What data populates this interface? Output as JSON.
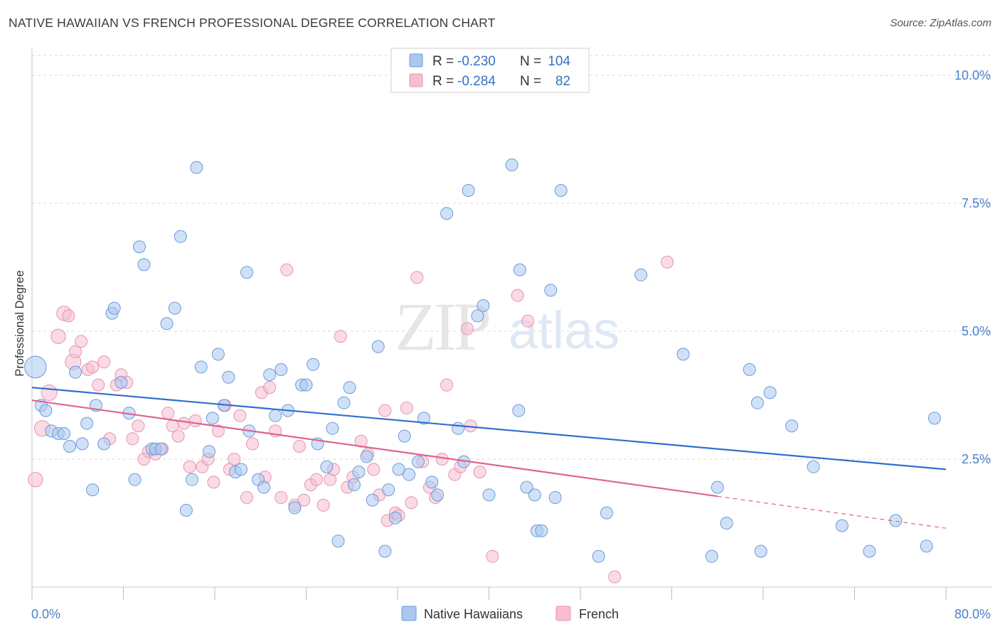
{
  "title": "NATIVE HAWAIIAN VS FRENCH PROFESSIONAL DEGREE CORRELATION CHART",
  "source": "Source: ZipAtlas.com",
  "watermark": {
    "zip": "ZIP",
    "atlas": "atlas"
  },
  "colors": {
    "blue_fill": "#a9c8f0",
    "blue_stroke": "#6c9bd8",
    "blue_line": "#2f6fcf",
    "pink_fill": "#f6bed0",
    "pink_stroke": "#e893b0",
    "pink_line": "#e0628f",
    "grid": "#d9d9d9",
    "tick_text": "#4a7fcb"
  },
  "legend_top": [
    {
      "r_label": "R =",
      "r_value": "-0.230",
      "n_label": "N =",
      "n_value": "104",
      "color": "blue"
    },
    {
      "r_label": "R =",
      "r_value": "-0.284",
      "n_label": "N =",
      "n_value": "82",
      "color": "pink"
    }
  ],
  "legend_bottom": [
    {
      "label": "Native Hawaiians",
      "color": "blue"
    },
    {
      "label": "French",
      "color": "pink"
    }
  ],
  "chart_data": {
    "type": "scatter",
    "title": "NATIVE HAWAIIAN VS FRENCH PROFESSIONAL DEGREE CORRELATION CHART",
    "xlabel": "",
    "ylabel": "Professional Degree",
    "xlim": [
      0,
      80
    ],
    "ylim": [
      0,
      10.5
    ],
    "x_tick_labels": [
      "0.0%",
      "80.0%"
    ],
    "y_ticks": [
      2.5,
      5.0,
      7.5,
      10.0
    ],
    "y_tick_labels": [
      "2.5%",
      "5.0%",
      "7.5%",
      "10.0%"
    ],
    "grid": true,
    "legend_placement": "top-center",
    "series": [
      {
        "name": "Native Hawaiians",
        "color": "blue",
        "trend": {
          "x": [
            0,
            80
          ],
          "y": [
            3.9,
            2.3
          ],
          "dashed_from": null
        },
        "points": [
          [
            0.3,
            4.3,
            1.8
          ],
          [
            0.8,
            3.55,
            1
          ],
          [
            1.2,
            3.45,
            1
          ],
          [
            1.7,
            3.05,
            1
          ],
          [
            2.3,
            3.0,
            1
          ],
          [
            2.8,
            3.0,
            1
          ],
          [
            3.3,
            2.75,
            1
          ],
          [
            3.8,
            4.2,
            1
          ],
          [
            4.4,
            2.8,
            1
          ],
          [
            4.8,
            3.2,
            1
          ],
          [
            5.3,
            1.9,
            1
          ],
          [
            5.6,
            3.55,
            1
          ],
          [
            6.3,
            2.8,
            1
          ],
          [
            7.0,
            5.35,
            1
          ],
          [
            7.2,
            5.45,
            1
          ],
          [
            7.8,
            4.0,
            1
          ],
          [
            8.5,
            3.4,
            1
          ],
          [
            9.0,
            2.1,
            1
          ],
          [
            9.4,
            6.65,
            1
          ],
          [
            9.8,
            6.3,
            1
          ],
          [
            10.5,
            2.7,
            1
          ],
          [
            10.8,
            2.7,
            1
          ],
          [
            11.3,
            2.7,
            1
          ],
          [
            11.8,
            5.15,
            1
          ],
          [
            12.5,
            5.45,
            1
          ],
          [
            13.0,
            6.85,
            1
          ],
          [
            13.5,
            1.5,
            1
          ],
          [
            14.0,
            2.1,
            1
          ],
          [
            14.4,
            8.2,
            1
          ],
          [
            14.8,
            4.3,
            1
          ],
          [
            15.5,
            2.65,
            1
          ],
          [
            15.8,
            3.3,
            1
          ],
          [
            16.3,
            4.55,
            1
          ],
          [
            16.8,
            3.55,
            1
          ],
          [
            17.2,
            4.1,
            1
          ],
          [
            17.8,
            2.25,
            1
          ],
          [
            18.3,
            2.3,
            1
          ],
          [
            18.8,
            6.15,
            1
          ],
          [
            19.0,
            3.05,
            1
          ],
          [
            19.8,
            2.1,
            1
          ],
          [
            20.3,
            1.95,
            1
          ],
          [
            20.8,
            4.15,
            1
          ],
          [
            21.3,
            3.35,
            1
          ],
          [
            21.8,
            4.25,
            1
          ],
          [
            22.4,
            3.45,
            1
          ],
          [
            23.0,
            1.55,
            1
          ],
          [
            23.6,
            3.95,
            1
          ],
          [
            24.0,
            3.95,
            1
          ],
          [
            24.6,
            4.35,
            1
          ],
          [
            25.0,
            2.8,
            1
          ],
          [
            25.8,
            2.35,
            1
          ],
          [
            26.3,
            3.1,
            1
          ],
          [
            26.8,
            0.9,
            1
          ],
          [
            27.3,
            3.6,
            1
          ],
          [
            27.8,
            3.9,
            1
          ],
          [
            28.2,
            2.0,
            1
          ],
          [
            28.6,
            2.25,
            1
          ],
          [
            29.3,
            2.55,
            1
          ],
          [
            29.8,
            1.7,
            1
          ],
          [
            30.3,
            4.7,
            1
          ],
          [
            30.9,
            0.7,
            1
          ],
          [
            31.2,
            1.9,
            1
          ],
          [
            31.8,
            1.35,
            1
          ],
          [
            32.1,
            2.3,
            1
          ],
          [
            32.6,
            2.95,
            1
          ],
          [
            33.0,
            2.2,
            1
          ],
          [
            33.8,
            2.45,
            1
          ],
          [
            34.3,
            3.3,
            1
          ],
          [
            35.0,
            2.05,
            1
          ],
          [
            35.5,
            1.8,
            1
          ],
          [
            36.3,
            7.3,
            1
          ],
          [
            37.3,
            3.1,
            1
          ],
          [
            37.8,
            2.45,
            1
          ],
          [
            38.2,
            7.75,
            1
          ],
          [
            39.0,
            5.3,
            1
          ],
          [
            39.5,
            5.5,
            1
          ],
          [
            40.0,
            1.8,
            1
          ],
          [
            42.0,
            8.25,
            1
          ],
          [
            42.6,
            3.45,
            1
          ],
          [
            42.7,
            6.2,
            1
          ],
          [
            43.3,
            1.95,
            1
          ],
          [
            44.0,
            1.8,
            1
          ],
          [
            44.2,
            1.1,
            1
          ],
          [
            44.6,
            1.1,
            1
          ],
          [
            45.4,
            5.8,
            1
          ],
          [
            45.8,
            1.75,
            1
          ],
          [
            46.3,
            7.75,
            1
          ],
          [
            49.6,
            0.6,
            1
          ],
          [
            50.3,
            1.45,
            1
          ],
          [
            53.3,
            6.1,
            1
          ],
          [
            57.0,
            4.55,
            1
          ],
          [
            59.5,
            0.6,
            1
          ],
          [
            60.0,
            1.95,
            1
          ],
          [
            60.8,
            1.25,
            1
          ],
          [
            62.8,
            4.25,
            1
          ],
          [
            63.5,
            3.6,
            1
          ],
          [
            63.8,
            0.7,
            1
          ],
          [
            64.6,
            3.8,
            1
          ],
          [
            66.5,
            3.15,
            1
          ],
          [
            68.4,
            2.35,
            1
          ],
          [
            70.9,
            1.2,
            1
          ],
          [
            73.3,
            0.7,
            1
          ],
          [
            75.6,
            1.3,
            1
          ],
          [
            78.3,
            0.8,
            1
          ],
          [
            79.0,
            3.3,
            1
          ]
        ]
      },
      {
        "name": "French",
        "color": "pink",
        "trend": {
          "x": [
            0,
            80
          ],
          "y": [
            3.65,
            1.15
          ],
          "dashed_from": 60
        },
        "points": [
          [
            0.3,
            2.1,
            1.2
          ],
          [
            0.9,
            3.1,
            1.3
          ],
          [
            1.5,
            3.8,
            1.3
          ],
          [
            2.3,
            4.9,
            1.2
          ],
          [
            2.8,
            5.35,
            1.2
          ],
          [
            3.2,
            5.3,
            1
          ],
          [
            3.6,
            4.4,
            1.3
          ],
          [
            3.8,
            4.6,
            1
          ],
          [
            4.3,
            4.8,
            1
          ],
          [
            4.9,
            4.25,
            1
          ],
          [
            5.3,
            4.3,
            1
          ],
          [
            5.8,
            3.95,
            1
          ],
          [
            6.3,
            4.4,
            1
          ],
          [
            6.8,
            2.9,
            1
          ],
          [
            7.4,
            3.95,
            1
          ],
          [
            7.8,
            4.15,
            1
          ],
          [
            8.3,
            4.0,
            1
          ],
          [
            8.8,
            2.9,
            1
          ],
          [
            9.3,
            3.15,
            1
          ],
          [
            9.8,
            2.5,
            1
          ],
          [
            10.2,
            2.65,
            1
          ],
          [
            10.8,
            2.6,
            1
          ],
          [
            11.4,
            2.7,
            1
          ],
          [
            11.9,
            3.4,
            1
          ],
          [
            12.3,
            3.15,
            1
          ],
          [
            12.8,
            2.95,
            1
          ],
          [
            13.3,
            3.2,
            1
          ],
          [
            13.8,
            2.35,
            1
          ],
          [
            14.3,
            3.25,
            1
          ],
          [
            14.9,
            2.35,
            1
          ],
          [
            15.4,
            2.5,
            1
          ],
          [
            15.9,
            2.05,
            1
          ],
          [
            16.3,
            3.05,
            1
          ],
          [
            16.9,
            3.55,
            1
          ],
          [
            17.3,
            2.3,
            1
          ],
          [
            17.7,
            2.5,
            1
          ],
          [
            18.2,
            3.35,
            1
          ],
          [
            18.8,
            1.75,
            1
          ],
          [
            19.3,
            2.8,
            1
          ],
          [
            20.1,
            3.8,
            1
          ],
          [
            20.4,
            2.15,
            1
          ],
          [
            20.8,
            3.9,
            1
          ],
          [
            21.3,
            3.05,
            1
          ],
          [
            21.8,
            1.75,
            1
          ],
          [
            22.3,
            6.2,
            1
          ],
          [
            23.0,
            1.6,
            1
          ],
          [
            23.4,
            2.75,
            1
          ],
          [
            23.8,
            1.7,
            1
          ],
          [
            24.4,
            2.0,
            1
          ],
          [
            24.9,
            2.1,
            1
          ],
          [
            25.5,
            1.6,
            1
          ],
          [
            26.1,
            2.1,
            1
          ],
          [
            26.4,
            2.3,
            1
          ],
          [
            27.0,
            4.9,
            1
          ],
          [
            27.6,
            1.95,
            1
          ],
          [
            28.1,
            2.15,
            1
          ],
          [
            28.8,
            2.85,
            1
          ],
          [
            29.4,
            2.6,
            1
          ],
          [
            29.9,
            2.3,
            1
          ],
          [
            30.4,
            1.8,
            1
          ],
          [
            30.9,
            3.45,
            1
          ],
          [
            31.1,
            1.3,
            1
          ],
          [
            31.8,
            1.45,
            1
          ],
          [
            32.1,
            1.4,
            1
          ],
          [
            32.8,
            3.5,
            1
          ],
          [
            33.2,
            1.65,
            1
          ],
          [
            33.7,
            6.05,
            1
          ],
          [
            34.2,
            2.45,
            1
          ],
          [
            34.8,
            1.95,
            1
          ],
          [
            35.3,
            1.75,
            1
          ],
          [
            35.9,
            2.5,
            1
          ],
          [
            36.3,
            3.95,
            1
          ],
          [
            37.0,
            2.2,
            1
          ],
          [
            37.5,
            2.35,
            1
          ],
          [
            38.1,
            5.05,
            1
          ],
          [
            38.4,
            3.15,
            1
          ],
          [
            39.2,
            2.25,
            1
          ],
          [
            42.5,
            5.7,
            1
          ],
          [
            43.4,
            5.2,
            1
          ],
          [
            40.3,
            0.6,
            1
          ],
          [
            55.6,
            6.35,
            1
          ],
          [
            51.0,
            0.2,
            1
          ]
        ]
      }
    ]
  }
}
